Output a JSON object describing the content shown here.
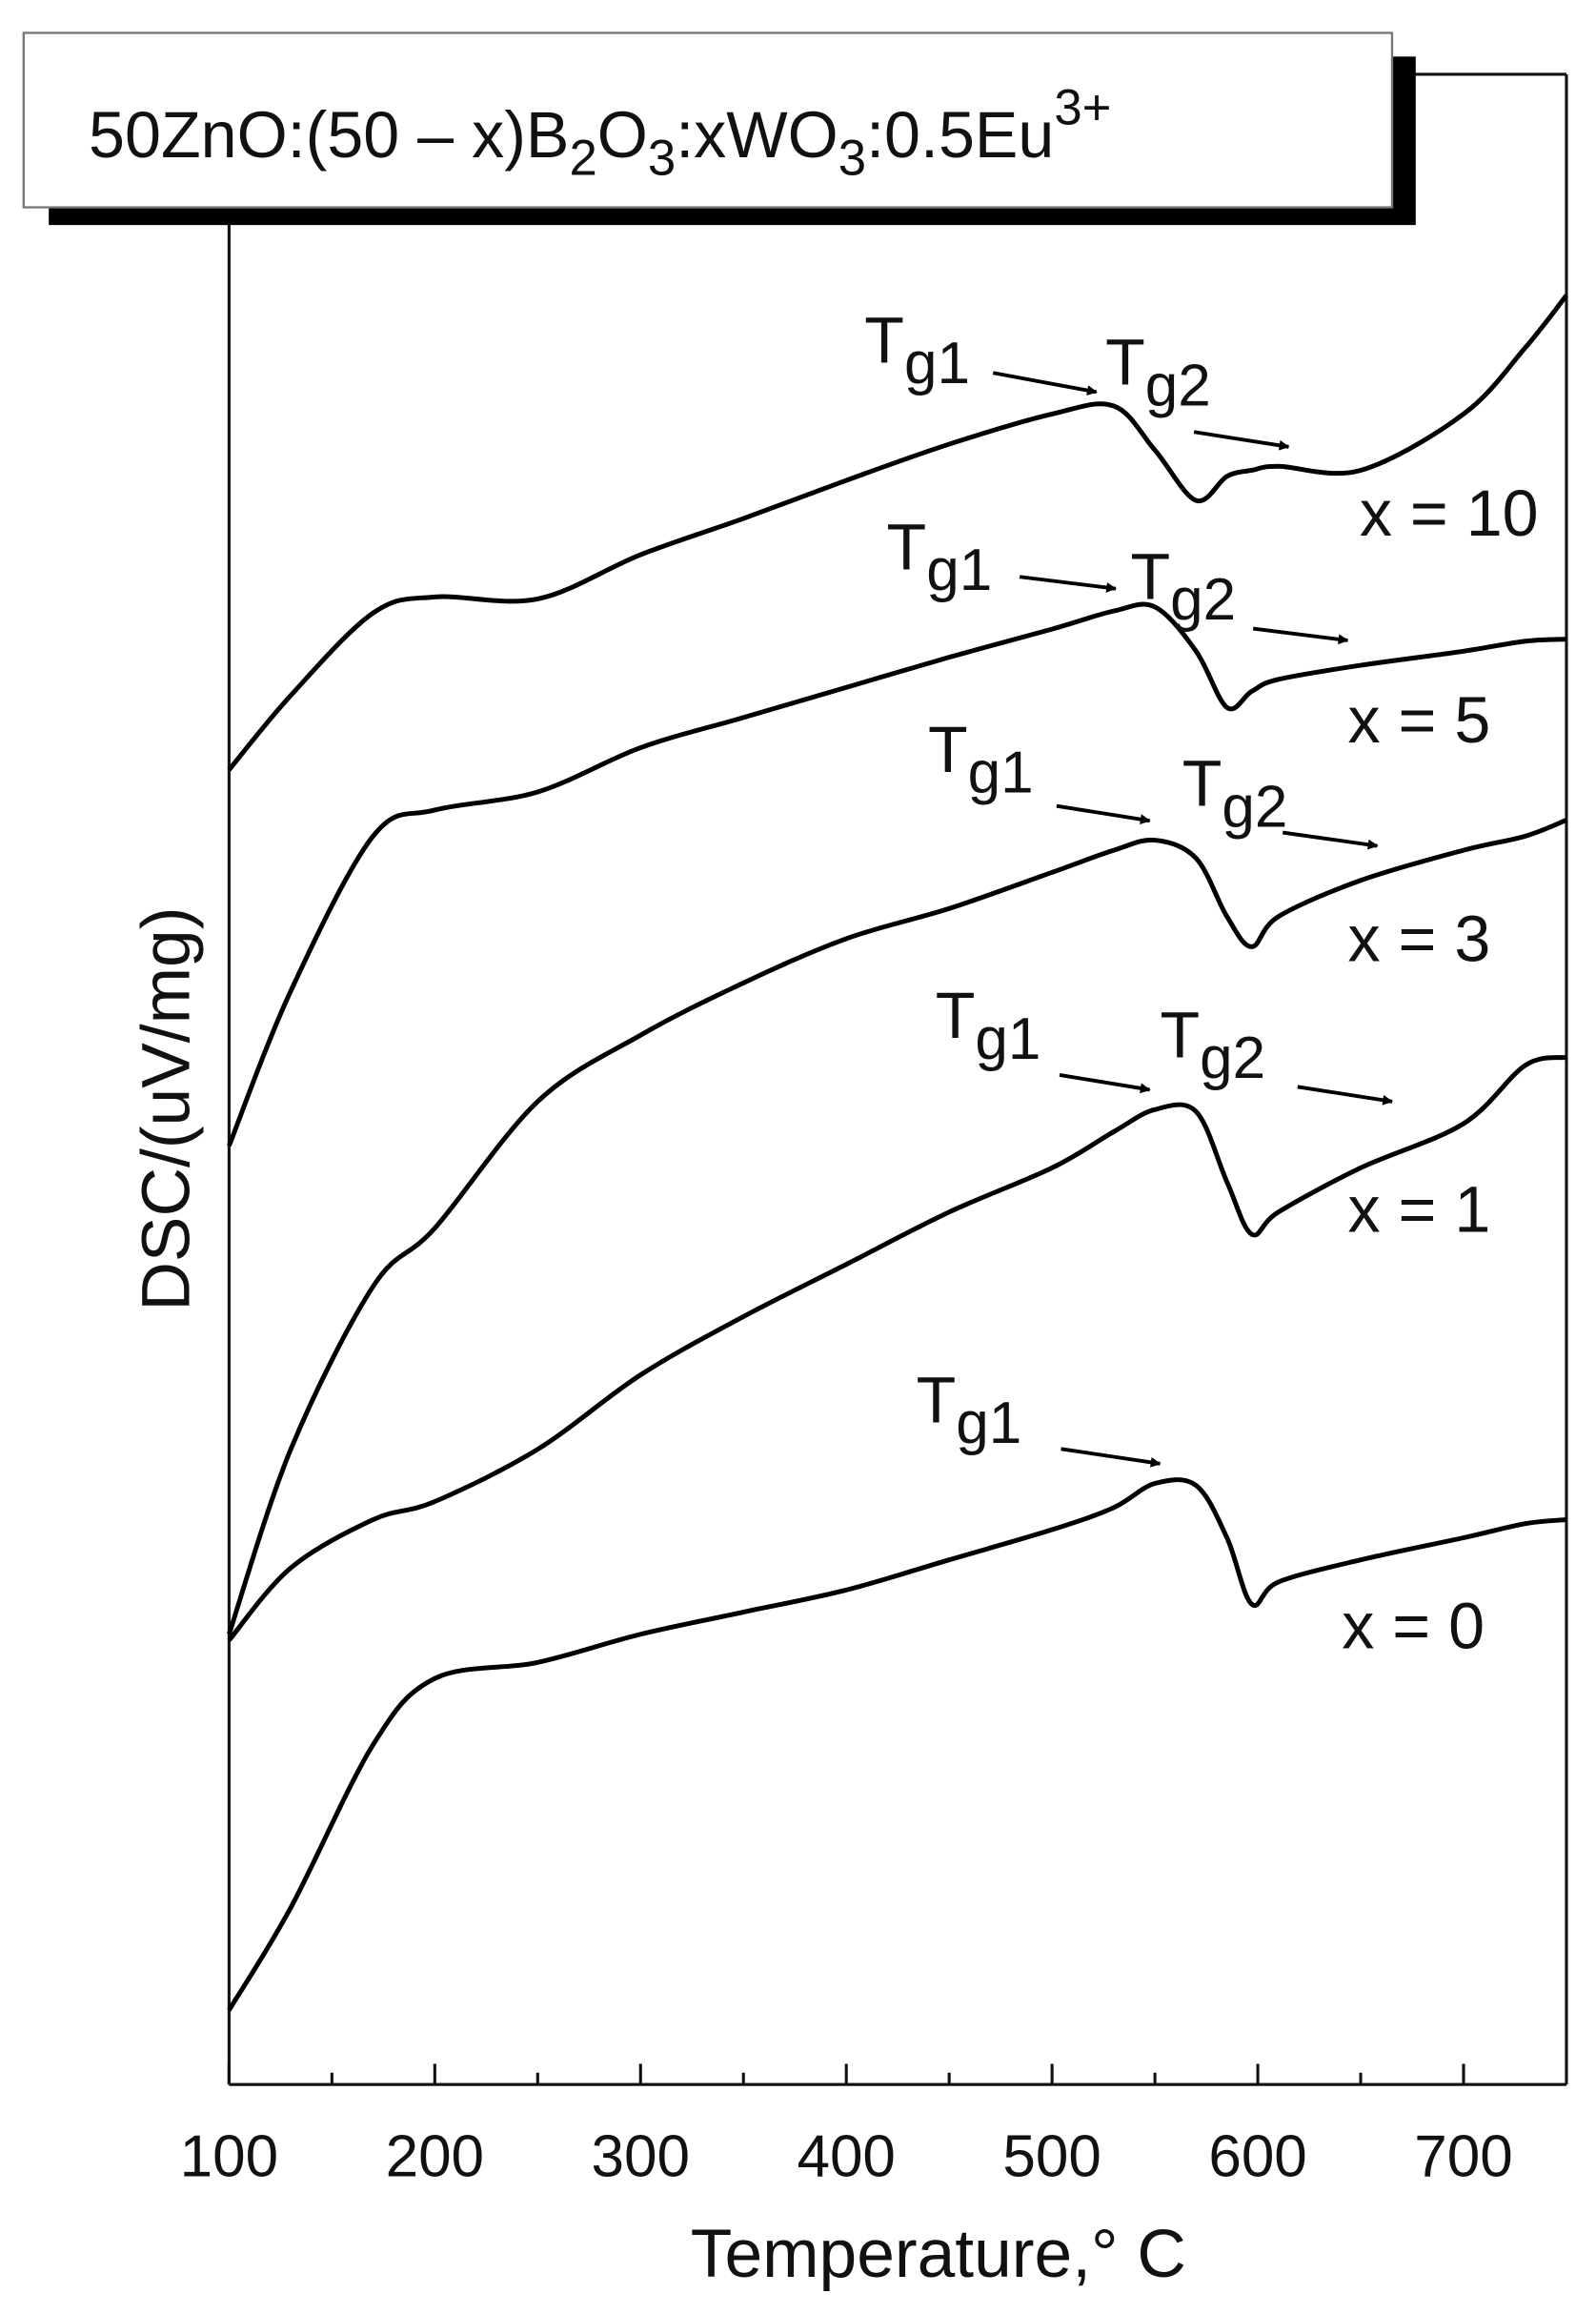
{
  "chart_data": {
    "type": "line",
    "title": [
      "50ZnO:(50 – x)B",
      "2",
      "O",
      "3",
      ":xWO",
      "3",
      ":0.5Eu",
      "3+"
    ],
    "xlabel": "Temperature,° C",
    "ylabel": "DSC/(uV/mg)",
    "xlim": [
      100,
      750
    ],
    "ylim": [
      0,
      100
    ],
    "xticks": [
      100,
      200,
      300,
      400,
      500,
      600,
      700
    ],
    "xminor_ticks": [
      150,
      250,
      350,
      450,
      550,
      650
    ],
    "x": [
      100,
      130,
      170,
      200,
      250,
      300,
      350,
      400,
      450,
      500,
      530,
      550,
      570,
      585,
      597,
      610,
      650,
      700,
      730,
      750
    ],
    "series": [
      {
        "name": "x = 10",
        "color": "#000000",
        "values": [
          65.4,
          69.1,
          73.2,
          74.0,
          73.9,
          76.1,
          77.9,
          79.8,
          81.6,
          83.1,
          83.5,
          81.3,
          78.8,
          80.0,
          80.3,
          80.5,
          80.3,
          83.1,
          86.4,
          89.0
        ]
      },
      {
        "name": "x = 5",
        "color": "#000000",
        "values": [
          46.7,
          54.4,
          62.1,
          63.4,
          64.3,
          66.5,
          68.0,
          69.5,
          71.0,
          72.4,
          73.3,
          73.5,
          71.3,
          68.5,
          69.3,
          69.9,
          70.6,
          71.3,
          71.8,
          71.9
        ]
      },
      {
        "name": "x = 3",
        "color": "#000000",
        "values": [
          22.4,
          31.6,
          39.7,
          42.6,
          48.9,
          52.2,
          54.8,
          57.0,
          58.5,
          60.3,
          61.4,
          61.9,
          61.0,
          58.1,
          56.6,
          58.1,
          59.9,
          61.4,
          62.1,
          62.9
        ]
      },
      {
        "name": "x = 1",
        "color": "#000000",
        "values": [
          22.1,
          25.7,
          28.1,
          29.0,
          31.6,
          35.3,
          38.2,
          40.8,
          43.4,
          45.6,
          47.4,
          48.5,
          48.4,
          44.9,
          42.3,
          43.4,
          45.6,
          47.8,
          50.7,
          51.1
        ]
      },
      {
        "name": "x = 0",
        "color": "#000000",
        "values": [
          3.7,
          8.8,
          16.9,
          20.2,
          21.0,
          22.4,
          23.5,
          24.6,
          26.1,
          27.6,
          28.7,
          29.9,
          29.8,
          27.2,
          23.9,
          25.0,
          26.1,
          27.2,
          27.9,
          28.1
        ]
      }
    ],
    "annotations": [
      {
        "text": "T",
        "sub": "g1"
      },
      {
        "text": "T",
        "sub": "g2"
      },
      {
        "text": "T",
        "sub": "g1"
      },
      {
        "text": "T",
        "sub": "g2"
      },
      {
        "text": "T",
        "sub": "g1"
      },
      {
        "text": "T",
        "sub": "g2"
      },
      {
        "text": "T",
        "sub": "g1"
      },
      {
        "text": "T",
        "sub": "g2"
      },
      {
        "text": "T",
        "sub": "g1"
      }
    ]
  }
}
